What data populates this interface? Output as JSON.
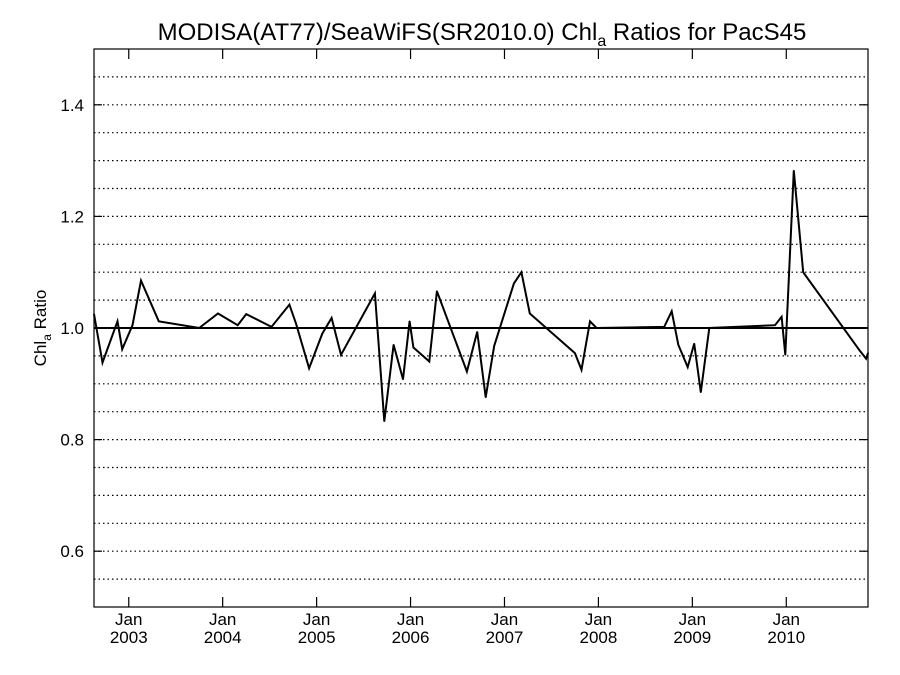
{
  "chart_data": {
    "type": "line",
    "title_main": "MODISA(AT77)/SeaWiFS(SR2010.0)  Chl",
    "title_sub": "a",
    "title_rest": " Ratios for PacS45",
    "ylabel_main": "Chl",
    "ylabel_sub": "a",
    "ylabel_rest": " Ratio",
    "ylim": [
      0.5,
      1.5
    ],
    "xlim": [
      2002.63,
      2010.87
    ],
    "yticks": [
      {
        "value": 0.6,
        "label": "0.6"
      },
      {
        "value": 0.8,
        "label": "0.8"
      },
      {
        "value": 1.0,
        "label": "1.0"
      },
      {
        "value": 1.2,
        "label": "1.2"
      },
      {
        "value": 1.4,
        "label": "1.4"
      }
    ],
    "xticks": [
      {
        "value": 2003,
        "month": "Jan",
        "year": "2003"
      },
      {
        "value": 2004,
        "month": "Jan",
        "year": "2004"
      },
      {
        "value": 2005,
        "month": "Jan",
        "year": "2005"
      },
      {
        "value": 2006,
        "month": "Jan",
        "year": "2006"
      },
      {
        "value": 2007,
        "month": "Jan",
        "year": "2007"
      },
      {
        "value": 2008,
        "month": "Jan",
        "year": "2008"
      },
      {
        "value": 2009,
        "month": "Jan",
        "year": "2009"
      },
      {
        "value": 2010,
        "month": "Jan",
        "year": "2010"
      }
    ],
    "grid": "horizontal dotted, every 0.05",
    "reference_line": 1.0,
    "series": [
      {
        "color": "#000000",
        "x": [
          2002.63,
          2002.72,
          2002.88,
          2002.93,
          2003.04,
          2003.13,
          2003.32,
          2003.75,
          2003.95,
          2004.16,
          2004.25,
          2004.52,
          2004.71,
          2004.78,
          2004.92,
          2005.06,
          2005.16,
          2005.26,
          2005.62,
          2005.72,
          2005.82,
          2005.92,
          2005.99,
          2006.03,
          2006.2,
          2006.28,
          2006.6,
          2006.71,
          2006.8,
          2006.89,
          2007.1,
          2007.18,
          2007.27,
          2007.75,
          2007.82,
          2007.91,
          2007.98,
          2008.7,
          2008.78,
          2008.85,
          2008.95,
          2009.02,
          2009.09,
          2009.18,
          2009.88,
          2009.95,
          2009.99,
          2010.08,
          2010.18,
          2010.78,
          2010.85,
          2010.87
        ],
        "y": [
          1.025,
          0.938,
          1.012,
          0.962,
          1.005,
          1.085,
          1.012,
          1.0,
          1.026,
          1.005,
          1.025,
          1.002,
          1.042,
          1.008,
          0.928,
          0.99,
          1.018,
          0.952,
          1.062,
          0.833,
          0.97,
          0.908,
          1.012,
          0.965,
          0.94,
          1.066,
          0.922,
          0.993,
          0.876,
          0.968,
          1.08,
          1.1,
          1.026,
          0.955,
          0.925,
          1.012,
          1.0,
          1.002,
          1.03,
          0.97,
          0.93,
          0.972,
          0.885,
          1.0,
          1.005,
          1.02,
          0.952,
          1.282,
          1.1,
          0.96,
          0.945,
          0.955
        ]
      }
    ]
  }
}
